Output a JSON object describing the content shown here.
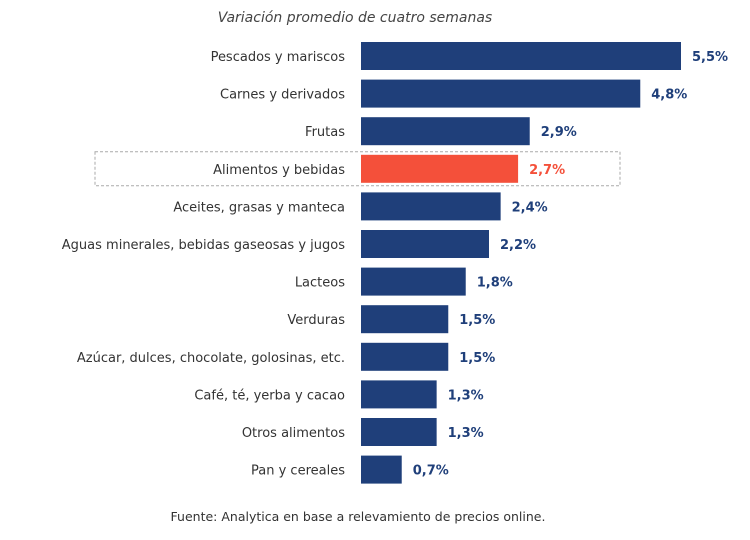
{
  "chart_data": {
    "type": "bar",
    "orientation": "horizontal",
    "title": "Variación promedio de cuatro semanas",
    "categories": [
      "Pescados y mariscos",
      "Carnes y derivados",
      "Frutas",
      "Alimentos y bebidas",
      "Aceites, grasas y manteca",
      "Aguas minerales, bebidas gaseosas y jugos",
      "Lacteos",
      "Verduras",
      "Azúcar, dulces, chocolate, golosinas, etc.",
      "Café, té, yerba y cacao",
      "Otros alimentos",
      "Pan y cereales"
    ],
    "values": [
      5.5,
      4.8,
      2.9,
      2.7,
      2.4,
      2.2,
      1.8,
      1.5,
      1.5,
      1.3,
      1.3,
      0.7
    ],
    "value_labels": [
      "5,5%",
      "4,8%",
      "2,9%",
      "2,7%",
      "2,4%",
      "2,2%",
      "1,8%",
      "1,5%",
      "1,5%",
      "1,3%",
      "1,3%",
      "0,7%"
    ],
    "highlight": "Alimentos y bebidas",
    "xlabel": "",
    "ylabel": "",
    "xlim": [
      0,
      5.5
    ],
    "grid": false,
    "source": "Fuente: Analytica en base a relevamiento de precios online."
  },
  "colors": {
    "bar": "#1f3f7a",
    "highlight": "#f4503a"
  }
}
